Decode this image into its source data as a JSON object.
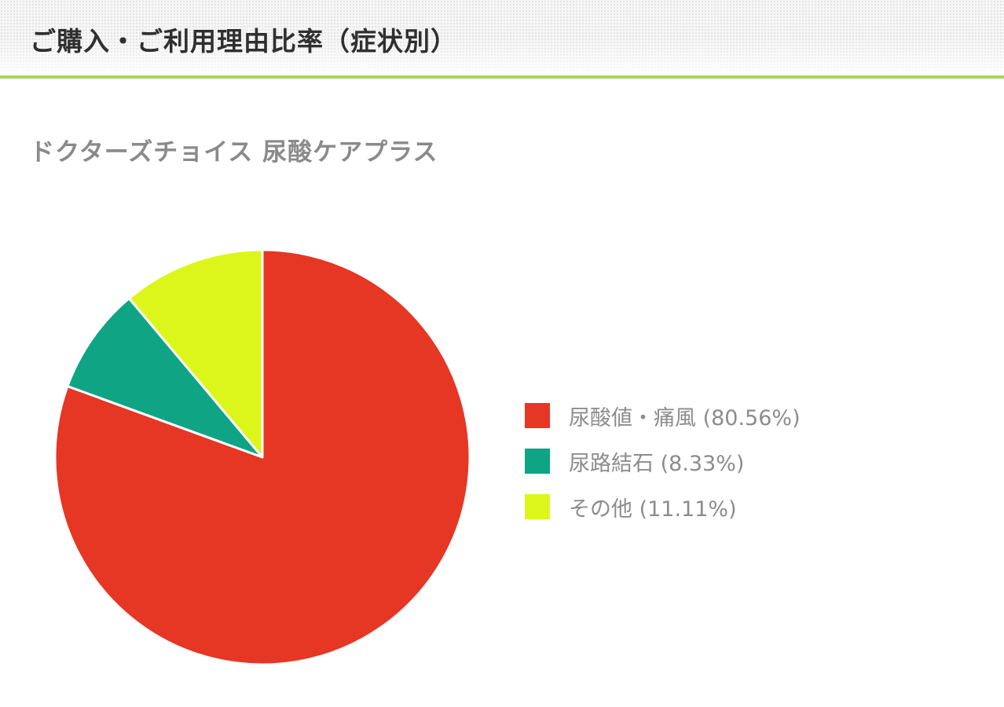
{
  "header": {
    "title": "ご購入・ご利用理由比率（症状別）"
  },
  "product": {
    "name": "ドクターズチョイス 尿酸ケアプラス"
  },
  "colors": {
    "accent_rule": "#a8d35f",
    "slice_red": "#e63624",
    "slice_teal": "#0fa484",
    "slice_lime": "#dcf61c"
  },
  "chart_data": {
    "type": "pie",
    "title": "",
    "slices": [
      {
        "label": "尿酸値・痛風",
        "value": 80.56,
        "legend": "尿酸値・痛風 (80.56%)",
        "color": "#e63624"
      },
      {
        "label": "尿路結石",
        "value": 8.33,
        "legend": "尿路結石 (8.33%)",
        "color": "#0fa484"
      },
      {
        "label": "その他",
        "value": 11.11,
        "legend": "その他 (11.11%)",
        "color": "#dcf61c"
      }
    ],
    "start_angle": "12 o'clock",
    "direction": "clockwise",
    "legend_position": "right"
  }
}
